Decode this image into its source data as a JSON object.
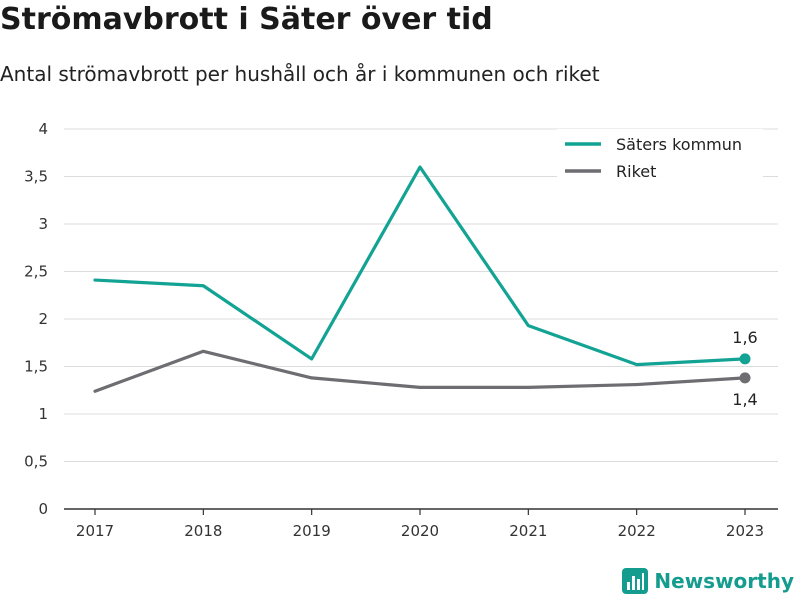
{
  "header": {
    "title": "Strömavbrott i Säter över tid",
    "subtitle": "Antal strömavbrott per hushåll och år i kommunen och riket"
  },
  "brand": {
    "name": "Newsworthy",
    "icon": "newsworthy-logo-icon",
    "color": "#149c8e"
  },
  "chart_data": {
    "type": "line",
    "x": [
      "2017",
      "2018",
      "2019",
      "2020",
      "2021",
      "2022",
      "2023"
    ],
    "ylim": [
      0,
      4
    ],
    "yticks": [
      0,
      0.5,
      1,
      1.5,
      2,
      2.5,
      3,
      3.5,
      4
    ],
    "ytick_labels": [
      "0",
      "0,5",
      "1",
      "1,5",
      "2",
      "2,5",
      "3",
      "3,5",
      "4"
    ],
    "grid": true,
    "legend_position": "top-right",
    "series": [
      {
        "name": "Säters kommun",
        "color": "#12a394",
        "values": [
          2.41,
          2.35,
          1.58,
          3.6,
          1.93,
          1.52,
          1.58
        ],
        "end_label": "1,6",
        "end_label_position": "above"
      },
      {
        "name": "Riket",
        "color": "#6d6d72",
        "values": [
          1.24,
          1.66,
          1.38,
          1.28,
          1.28,
          1.31,
          1.38
        ],
        "end_label": "1,4",
        "end_label_position": "below"
      }
    ]
  }
}
